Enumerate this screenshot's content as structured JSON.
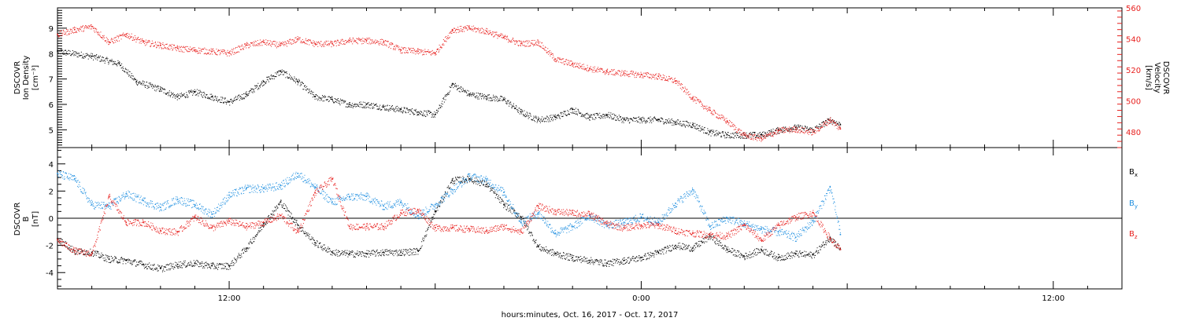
{
  "colors": {
    "black": "#000000",
    "red": "#e8201e",
    "blue": "#1f8fe0"
  },
  "xaxis": {
    "label": "hours:minutes, Oct. 16, 2017 - Oct. 17, 2017",
    "ticks": [
      "12:00",
      "0:00",
      "12:00"
    ],
    "range_hours": [
      7,
      38
    ]
  },
  "top_panel": {
    "left_label_lines": [
      "DSCOVR",
      "Ion Density"
    ],
    "left_unit": "[cm⁻³]",
    "right_label_lines": [
      "DSCOVR",
      "Velocity"
    ],
    "right_unit": "[km/s]",
    "left_ticks": [
      "5",
      "6",
      "7",
      "8",
      "9"
    ],
    "right_ticks": [
      "480",
      "500",
      "520",
      "540",
      "560"
    ]
  },
  "bottom_panel": {
    "left_label_lines": [
      "DSCOVR",
      "B"
    ],
    "left_unit": "[nT]",
    "ticks": [
      "-4",
      "-2",
      "0",
      "2",
      "4"
    ],
    "legend": [
      {
        "base": "B",
        "sub": "x",
        "color": "#000000"
      },
      {
        "base": "B",
        "sub": "y",
        "color": "#1f8fe0"
      },
      {
        "base": "B",
        "sub": "z",
        "color": "#e8201e"
      }
    ]
  },
  "chart_data": [
    {
      "type": "scatter",
      "name": "",
      "xlabel": "hours:minutes, Oct. 16, 2017 - Oct. 17, 2017",
      "ylabel": "DSCOVR Ion Density [cm-3]",
      "y2label": "DSCOVR Velocity [km/s]",
      "xlim_hours": [
        7,
        38
      ],
      "ylim": [
        4.3,
        9.8
      ],
      "y2lim": [
        470,
        560
      ],
      "series": [
        {
          "name": "Ion Density",
          "axis": "left",
          "color": "#000000",
          "x": [
            7.0,
            8.0,
            8.8,
            9.3,
            10.0,
            10.5,
            11.0,
            11.5,
            12.0,
            12.5,
            13.0,
            13.5,
            14.0,
            14.5,
            15.0,
            15.5,
            16.0,
            16.5,
            17.0,
            17.5,
            18.0,
            18.5,
            19.0,
            19.5,
            20.0,
            20.5,
            21.0,
            21.5,
            22.0,
            22.5,
            23.0,
            23.5,
            24.0,
            24.5,
            25.0,
            25.5,
            26.0,
            26.5,
            27.0,
            27.5,
            28.0,
            28.5,
            29.0,
            29.5,
            29.8
          ],
          "y": [
            8.1,
            7.9,
            7.6,
            6.9,
            6.6,
            6.3,
            6.5,
            6.3,
            6.1,
            6.4,
            6.9,
            7.3,
            6.9,
            6.3,
            6.2,
            6.0,
            6.0,
            5.9,
            5.8,
            5.7,
            5.6,
            6.8,
            6.4,
            6.3,
            6.2,
            5.7,
            5.4,
            5.5,
            5.8,
            5.5,
            5.6,
            5.4,
            5.4,
            5.4,
            5.3,
            5.2,
            4.9,
            4.8,
            4.8,
            4.8,
            5.0,
            5.1,
            5.0,
            5.4,
            5.2
          ]
        },
        {
          "name": "Velocity",
          "axis": "right",
          "color": "#e8201e",
          "x": [
            7.0,
            7.5,
            8.0,
            8.5,
            9.0,
            9.5,
            10.0,
            10.5,
            11.0,
            11.5,
            12.0,
            12.5,
            13.0,
            13.5,
            14.0,
            14.5,
            15.0,
            15.5,
            16.0,
            16.5,
            17.0,
            17.5,
            18.0,
            18.5,
            19.0,
            19.5,
            20.0,
            20.5,
            21.0,
            21.5,
            22.0,
            22.5,
            23.0,
            23.5,
            24.0,
            24.5,
            25.0,
            25.5,
            26.0,
            26.5,
            27.0,
            27.5,
            28.0,
            28.5,
            29.0,
            29.5,
            29.8
          ],
          "y": [
            543,
            546,
            548,
            538,
            543,
            538,
            536,
            534,
            533,
            532,
            531,
            536,
            538,
            536,
            540,
            537,
            537,
            539,
            539,
            538,
            533,
            532,
            531,
            546,
            547,
            545,
            541,
            537,
            538,
            527,
            524,
            521,
            519,
            518,
            517,
            516,
            513,
            502,
            494,
            487,
            478,
            476,
            481,
            482,
            480,
            488,
            482
          ]
        }
      ]
    },
    {
      "type": "scatter",
      "name": "",
      "xlabel": "hours:minutes, Oct. 16, 2017 - Oct. 17, 2017",
      "ylabel": "DSCOVR B [nT]",
      "xlim_hours": [
        7,
        38
      ],
      "ylim": [
        -5.2,
        5.2
      ],
      "series": [
        {
          "name": "Bx",
          "color": "#000000",
          "x": [
            7.0,
            7.5,
            8.0,
            8.5,
            9.0,
            9.5,
            10.0,
            10.5,
            11.0,
            11.5,
            12.0,
            12.5,
            13.0,
            13.5,
            14.0,
            14.5,
            15.0,
            15.5,
            16.0,
            16.5,
            17.0,
            17.5,
            18.0,
            18.5,
            19.0,
            19.5,
            20.0,
            20.5,
            21.0,
            21.5,
            22.0,
            22.5,
            23.0,
            23.5,
            24.0,
            24.5,
            25.0,
            25.5,
            26.0,
            26.5,
            27.0,
            27.5,
            28.0,
            28.5,
            29.0,
            29.5,
            29.8
          ],
          "y": [
            -1.5,
            -2.4,
            -2.5,
            -3.0,
            -3.1,
            -3.4,
            -3.7,
            -3.4,
            -3.3,
            -3.5,
            -3.5,
            -2.2,
            -0.4,
            1.2,
            -0.5,
            -1.8,
            -2.5,
            -2.6,
            -2.6,
            -2.5,
            -2.5,
            -2.4,
            0.5,
            2.8,
            2.9,
            2.5,
            1.0,
            0.1,
            -2.1,
            -2.6,
            -2.9,
            -3.1,
            -3.3,
            -3.1,
            -2.9,
            -2.5,
            -2.0,
            -2.2,
            -1.3,
            -2.3,
            -2.8,
            -2.3,
            -2.9,
            -2.6,
            -2.7,
            -1.4,
            -2.3
          ]
        },
        {
          "name": "By",
          "color": "#1f8fe0",
          "x": [
            7.0,
            7.5,
            8.0,
            8.5,
            9.0,
            9.5,
            10.0,
            10.5,
            11.0,
            11.5,
            12.0,
            12.5,
            13.0,
            13.5,
            14.0,
            14.5,
            15.0,
            15.5,
            16.0,
            16.5,
            17.0,
            17.5,
            18.0,
            18.5,
            19.0,
            19.5,
            20.0,
            20.5,
            21.0,
            21.5,
            22.0,
            22.5,
            23.0,
            23.5,
            24.0,
            24.5,
            25.0,
            25.5,
            26.0,
            26.5,
            27.0,
            27.5,
            28.0,
            28.5,
            29.0,
            29.5,
            29.8
          ],
          "y": [
            3.3,
            2.9,
            1.0,
            0.9,
            1.8,
            1.3,
            0.8,
            1.4,
            1.0,
            0.3,
            1.7,
            2.2,
            2.2,
            2.4,
            3.3,
            2.3,
            1.2,
            1.6,
            1.6,
            0.9,
            1.2,
            0.2,
            1.0,
            2.1,
            3.1,
            2.8,
            1.9,
            -0.3,
            0.4,
            -1.1,
            -0.6,
            0.2,
            -0.5,
            -0.3,
            0.1,
            -0.3,
            1.1,
            2.1,
            -0.6,
            0.0,
            -0.4,
            -0.8,
            -1.0,
            -1.4,
            -0.2,
            2.3,
            -1.2
          ]
        },
        {
          "name": "Bz",
          "color": "#e8201e",
          "x": [
            7.0,
            7.5,
            8.0,
            8.5,
            9.0,
            9.5,
            10.0,
            10.5,
            11.0,
            11.5,
            12.0,
            12.5,
            13.0,
            13.5,
            14.0,
            14.5,
            15.0,
            15.5,
            16.0,
            16.5,
            17.0,
            17.5,
            18.0,
            18.5,
            19.0,
            19.5,
            20.0,
            20.5,
            21.0,
            21.5,
            22.0,
            22.5,
            23.0,
            23.5,
            24.0,
            24.5,
            25.0,
            25.5,
            26.0,
            26.5,
            27.0,
            27.5,
            28.0,
            28.5,
            29.0,
            29.5,
            29.8
          ],
          "y": [
            -1.6,
            -2.4,
            -2.6,
            1.6,
            -0.3,
            -0.3,
            -0.9,
            -1.0,
            0.1,
            -0.7,
            -0.2,
            -0.6,
            -0.3,
            0.2,
            -1.0,
            1.9,
            2.9,
            -0.6,
            -0.6,
            -0.6,
            0.4,
            0.6,
            -0.7,
            -0.7,
            -0.8,
            -0.9,
            -0.6,
            -1.0,
            0.9,
            0.5,
            0.4,
            0.3,
            -0.4,
            -0.7,
            -0.5,
            -0.5,
            -0.9,
            -1.1,
            -1.2,
            -1.3,
            -0.5,
            -1.6,
            -0.5,
            0.1,
            0.4,
            -1.5,
            -2.3
          ]
        }
      ]
    }
  ]
}
